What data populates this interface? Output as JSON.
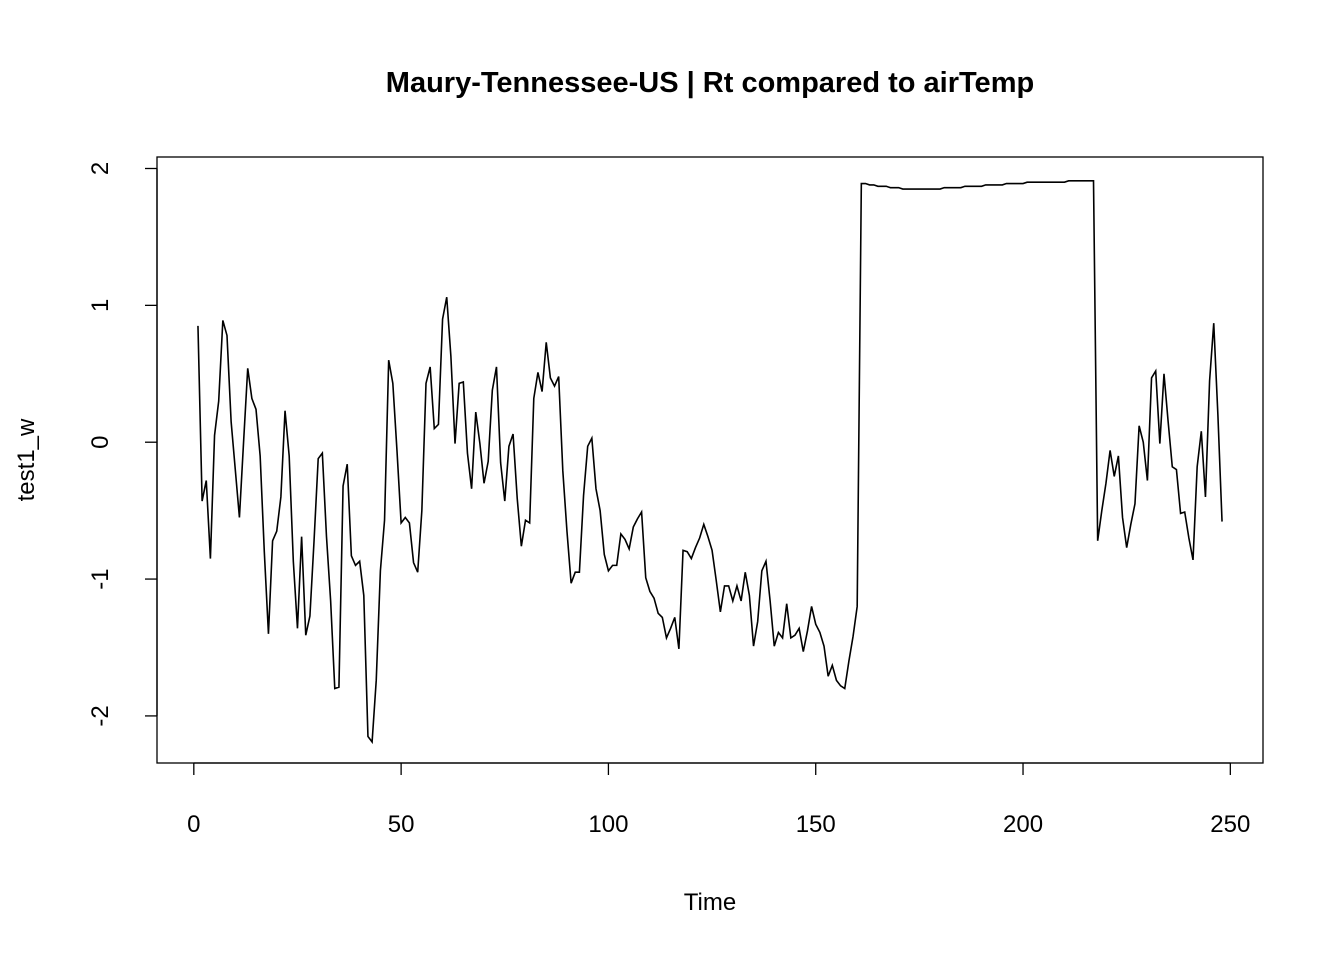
{
  "chart_data": {
    "type": "line",
    "title": "Maury-Tennessee-US | Rt compared to airTemp",
    "xlabel": "Time",
    "ylabel": "test1_w",
    "x": [
      1,
      2,
      3,
      4,
      5,
      6,
      7,
      8,
      9,
      10,
      11,
      12,
      13,
      14,
      15,
      16,
      17,
      18,
      19,
      20,
      21,
      22,
      23,
      24,
      25,
      26,
      27,
      28,
      29,
      30,
      31,
      32,
      33,
      34,
      35,
      36,
      37,
      38,
      39,
      40,
      41,
      42,
      43,
      44,
      45,
      46,
      47,
      48,
      49,
      50,
      51,
      52,
      53,
      54,
      55,
      56,
      57,
      58,
      59,
      60,
      61,
      62,
      63,
      64,
      65,
      66,
      67,
      68,
      69,
      70,
      71,
      72,
      73,
      74,
      75,
      76,
      77,
      78,
      79,
      80,
      81,
      82,
      83,
      84,
      85,
      86,
      87,
      88,
      89,
      90,
      91,
      92,
      93,
      94,
      95,
      96,
      97,
      98,
      99,
      100,
      101,
      102,
      103,
      104,
      105,
      106,
      107,
      108,
      109,
      110,
      111,
      112,
      113,
      114,
      115,
      116,
      117,
      118,
      119,
      120,
      121,
      122,
      123,
      124,
      125,
      126,
      127,
      128,
      129,
      130,
      131,
      132,
      133,
      134,
      135,
      136,
      137,
      138,
      139,
      140,
      141,
      142,
      143,
      144,
      145,
      146,
      147,
      148,
      149,
      150,
      151,
      152,
      153,
      154,
      155,
      156,
      157,
      158,
      159,
      160,
      161,
      162,
      163,
      164,
      165,
      166,
      167,
      168,
      169,
      170,
      171,
      172,
      173,
      174,
      175,
      176,
      177,
      178,
      179,
      180,
      181,
      182,
      183,
      184,
      185,
      186,
      187,
      188,
      189,
      190,
      191,
      192,
      193,
      194,
      195,
      196,
      197,
      198,
      199,
      200,
      201,
      202,
      203,
      204,
      205,
      206,
      207,
      208,
      209,
      210,
      211,
      212,
      213,
      214,
      215,
      216,
      217,
      218,
      219,
      220,
      221,
      222,
      223,
      224,
      225,
      226,
      227,
      228,
      229,
      230,
      231,
      232,
      233,
      234,
      235,
      236,
      237,
      238,
      239,
      240,
      241,
      242,
      243,
      244,
      245,
      246,
      247,
      248
    ],
    "series": [
      {
        "name": "test1_w",
        "color": "#000000",
        "values": [
          0.85,
          -0.43,
          -0.28,
          -0.85,
          0.05,
          0.3,
          0.89,
          0.78,
          0.15,
          -0.2,
          -0.55,
          0.0,
          0.54,
          0.32,
          0.24,
          -0.1,
          -0.8,
          -1.4,
          -0.72,
          -0.65,
          -0.4,
          0.23,
          -0.1,
          -0.87,
          -1.36,
          -0.69,
          -1.41,
          -1.27,
          -0.72,
          -0.12,
          -0.08,
          -0.69,
          -1.16,
          -1.8,
          -1.79,
          -0.32,
          -0.16,
          -0.83,
          -0.9,
          -0.87,
          -1.12,
          -2.15,
          -2.19,
          -1.74,
          -0.94,
          -0.57,
          0.6,
          0.43,
          -0.06,
          -0.59,
          -0.55,
          -0.59,
          -0.88,
          -0.95,
          -0.5,
          0.43,
          0.55,
          0.1,
          0.13,
          0.9,
          1.06,
          0.63,
          -0.01,
          0.43,
          0.44,
          -0.08,
          -0.34,
          0.22,
          -0.01,
          -0.3,
          -0.14,
          0.38,
          0.55,
          -0.15,
          -0.43,
          -0.03,
          0.06,
          -0.41,
          -0.76,
          -0.57,
          -0.59,
          0.32,
          0.51,
          0.37,
          0.73,
          0.47,
          0.41,
          0.48,
          -0.21,
          -0.65,
          -1.03,
          -0.95,
          -0.95,
          -0.39,
          -0.03,
          0.03,
          -0.34,
          -0.5,
          -0.82,
          -0.94,
          -0.9,
          -0.9,
          -0.67,
          -0.71,
          -0.78,
          -0.62,
          -0.56,
          -0.51,
          -0.99,
          -1.09,
          -1.14,
          -1.25,
          -1.28,
          -1.43,
          -1.36,
          -1.28,
          -1.51,
          -0.79,
          -0.8,
          -0.85,
          -0.77,
          -0.7,
          -0.6,
          -0.69,
          -0.79,
          -1.01,
          -1.24,
          -1.05,
          -1.05,
          -1.16,
          -1.05,
          -1.16,
          -0.95,
          -1.12,
          -1.49,
          -1.31,
          -0.94,
          -0.87,
          -1.16,
          -1.49,
          -1.39,
          -1.43,
          -1.18,
          -1.43,
          -1.41,
          -1.36,
          -1.53,
          -1.38,
          -1.2,
          -1.33,
          -1.39,
          -1.49,
          -1.71,
          -1.63,
          -1.74,
          -1.78,
          -1.8,
          -1.6,
          -1.42,
          -1.2,
          1.89,
          1.89,
          1.88,
          1.88,
          1.87,
          1.87,
          1.87,
          1.86,
          1.86,
          1.86,
          1.85,
          1.85,
          1.85,
          1.85,
          1.85,
          1.85,
          1.85,
          1.85,
          1.85,
          1.85,
          1.86,
          1.86,
          1.86,
          1.86,
          1.86,
          1.87,
          1.87,
          1.87,
          1.87,
          1.87,
          1.88,
          1.88,
          1.88,
          1.88,
          1.88,
          1.89,
          1.89,
          1.89,
          1.89,
          1.89,
          1.9,
          1.9,
          1.9,
          1.9,
          1.9,
          1.9,
          1.9,
          1.9,
          1.9,
          1.9,
          1.91,
          1.91,
          1.91,
          1.91,
          1.91,
          1.91,
          1.91,
          -0.72,
          -0.5,
          -0.3,
          -0.06,
          -0.25,
          -0.1,
          -0.55,
          -0.77,
          -0.6,
          -0.45,
          0.12,
          0.0,
          -0.28,
          0.47,
          0.52,
          -0.01,
          0.5,
          0.15,
          -0.18,
          -0.2,
          -0.52,
          -0.51,
          -0.7,
          -0.86,
          -0.18,
          0.08,
          -0.4,
          0.45,
          0.87,
          0.2,
          -0.58
        ]
      }
    ],
    "xlim": [
      -8.88,
      257.88
    ],
    "xticks": [
      0,
      50,
      100,
      150,
      200,
      250
    ],
    "ylim": [
      -2.344,
      2.084
    ],
    "yticks": [
      -2,
      -1,
      0,
      1,
      2
    ]
  }
}
